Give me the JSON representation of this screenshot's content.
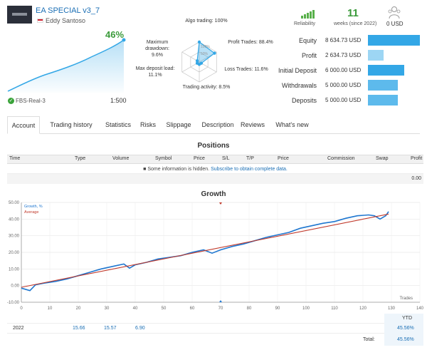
{
  "signal": {
    "name": "EA SPECIAL v3_7",
    "author": "Eddy Santoso",
    "growth_percent": "46%",
    "server": "FBS-Real-3",
    "leverage": "1:500"
  },
  "radar": {
    "center_label": "100%",
    "mid_label": "50%",
    "labels": {
      "algo": "Algo trading: 100%",
      "profit_trades": "Profit Trades: 88.4%",
      "loss_trades": "Loss Trades: 11.6%",
      "activity": "Trading activity: 8.5%",
      "max_load": "Max deposit load:\n11.1%",
      "max_drawdown": "Maximum\ndrawdown: 9.6%"
    },
    "values": [
      1.0,
      0.884,
      0.116,
      0.085,
      0.111,
      0.096
    ]
  },
  "header_stats": {
    "reliability_label": "Reliability",
    "weeks_value": "11",
    "weeks_label": "weeks (since 2022)",
    "subscribers_value": "0 USD"
  },
  "stats": [
    {
      "label": "Equity",
      "value": "8 634.73 USD",
      "fill": 1.0
    },
    {
      "label": "Profit",
      "value": "2 634.73 USD",
      "fill": 0.305
    },
    {
      "label": "Initial Deposit",
      "value": "6 000.00 USD",
      "fill": 0.695
    },
    {
      "label": "Withdrawals",
      "value": "5 000.00 USD",
      "fill": 0.579
    },
    {
      "label": "Deposits",
      "value": "5 000.00 USD",
      "fill": 0.579
    }
  ],
  "tabs": [
    {
      "label": "Account",
      "active": true
    },
    {
      "label": "Trading history"
    },
    {
      "label": "Statistics"
    },
    {
      "label": "Risks"
    },
    {
      "label": "Slippage"
    },
    {
      "label": "Description"
    },
    {
      "label": "Reviews"
    },
    {
      "label": "What's new"
    }
  ],
  "positions": {
    "title": "Positions",
    "columns": [
      "Time",
      "Type",
      "Volume",
      "Symbol",
      "Price",
      "S/L",
      "T/P",
      "Price",
      "Commission",
      "Swap",
      "Profit"
    ],
    "notice_pre": "Some information is hidden.",
    "notice_link": "Subscribe to obtain complete data.",
    "total": "0.00"
  },
  "growth": {
    "title": "Growth",
    "legend_growth": "Growth, %",
    "legend_average": "Average",
    "x_axis_label": "Trades",
    "months": [
      "Jan",
      "Feb",
      "Mar",
      "Apr",
      "May",
      "Jun",
      "Jul",
      "Aug",
      "Sep",
      "Oct",
      "Nov",
      "Dec"
    ],
    "ytd_label": "YTD",
    "year": "2022",
    "year_values": [
      "",
      "15.66",
      "15.57",
      "6.90",
      "",
      "",
      "",
      "",
      "",
      "",
      "",
      ""
    ],
    "year_ytd": "45.56%",
    "total_label": "Total:",
    "total_value": "45.56%"
  },
  "chart_data": {
    "type": "line",
    "xlabel": "Trades",
    "ylabel": "Growth, %",
    "xlim": [
      0,
      140
    ],
    "ylim": [
      -10,
      50
    ],
    "xticks": [
      0,
      10,
      20,
      30,
      40,
      50,
      60,
      70,
      80,
      90,
      100,
      110,
      120,
      130,
      140
    ],
    "yticks": [
      -10,
      0,
      10,
      20,
      30,
      40,
      50
    ],
    "series": [
      {
        "name": "Growth, %",
        "color": "#1f77d0",
        "x": [
          0,
          3,
          5,
          8,
          12,
          16,
          20,
          24,
          28,
          32,
          36,
          38,
          40,
          44,
          48,
          52,
          56,
          60,
          64,
          67,
          70,
          74,
          78,
          82,
          86,
          90,
          94,
          98,
          102,
          106,
          110,
          114,
          118,
          122,
          124,
          126,
          128,
          129
        ],
        "y": [
          -1.5,
          -3.0,
          0.5,
          1.5,
          2.5,
          4.0,
          6.0,
          8.0,
          10.0,
          11.5,
          13.0,
          10.5,
          12.5,
          14.0,
          16.0,
          17.0,
          18.0,
          20.0,
          21.5,
          19.5,
          21.5,
          23.5,
          25.0,
          27.0,
          29.0,
          30.5,
          32.0,
          34.5,
          36.0,
          37.5,
          38.5,
          40.5,
          42.0,
          42.5,
          42.0,
          40.0,
          42.0,
          44.5
        ]
      },
      {
        "name": "Average",
        "color": "#c0392b",
        "x": [
          0,
          129
        ],
        "y": [
          -1.0,
          43.0
        ]
      }
    ]
  },
  "colors": {
    "accent_blue": "#33a7e6",
    "growth_green": "#3a9a3a",
    "line_blue": "#1f77d0",
    "average_red": "#c0392b"
  }
}
